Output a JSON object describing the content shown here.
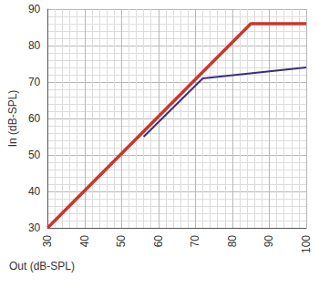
{
  "chart_data": {
    "type": "line",
    "x_label": "Out (dB-SPL)",
    "y_label": "In (dB-SPL)",
    "xlim": [
      30,
      100
    ],
    "xticks": [
      30,
      40,
      50,
      60,
      70,
      80,
      90,
      100
    ],
    "ylim": [
      30,
      90
    ],
    "yticks": [
      30,
      40,
      50,
      60,
      70,
      80,
      90
    ],
    "grid": true,
    "series": [
      {
        "color": "#c8372d",
        "x": [
          30,
          85,
          100
        ],
        "values": [
          30,
          86,
          86
        ]
      },
      {
        "color": "#3b2f7a",
        "x": [
          56,
          72,
          100
        ],
        "values": [
          55,
          71,
          74
        ]
      }
    ]
  }
}
